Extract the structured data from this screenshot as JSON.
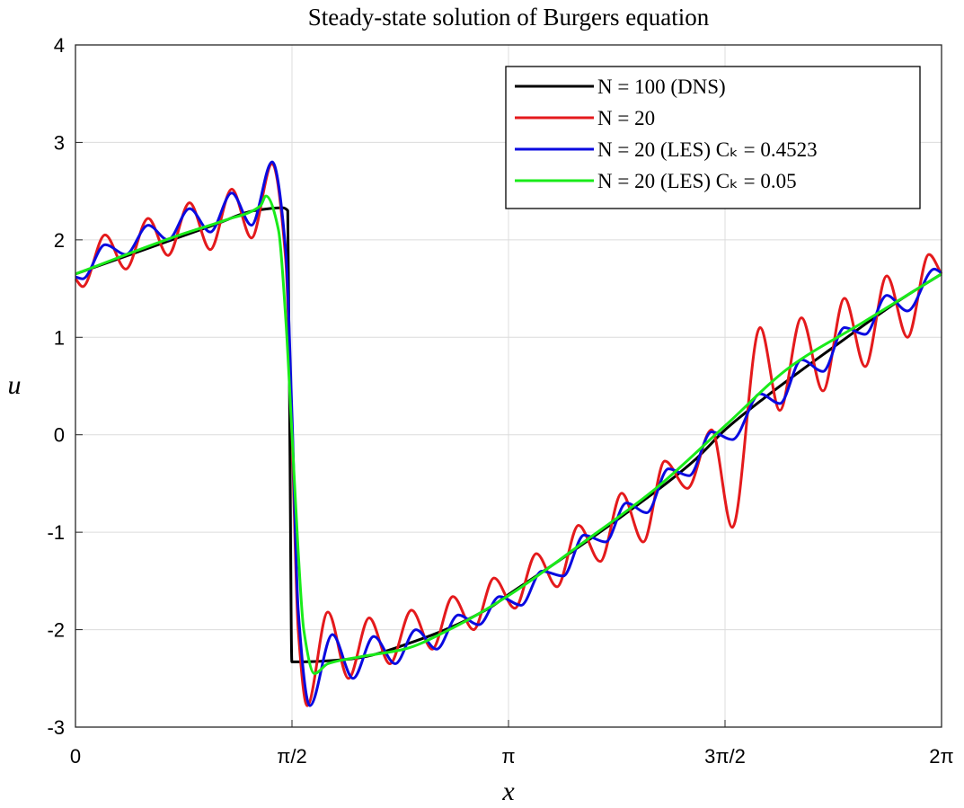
{
  "chart_data": {
    "type": "line",
    "title": "Steady-state solution of Burgers equation",
    "x_label": "x",
    "y_label": "u",
    "xlim": [
      0,
      6.2832
    ],
    "ylim": [
      -3,
      4
    ],
    "xticks": [
      0,
      {
        "value": 1.5708,
        "label": "π/2"
      },
      {
        "value": 3.1416,
        "label": "π"
      },
      {
        "value": 4.7124,
        "label": "3π/2"
      },
      {
        "value": 6.2832,
        "label": "2π"
      }
    ],
    "yticks": [
      -3,
      -2,
      -1,
      0,
      1,
      2,
      3,
      4
    ],
    "grid": true,
    "legend": "upper right",
    "series": [
      {
        "name": "N = 100 (DNS)",
        "color": "#000000",
        "x": [
          0,
          0.5,
          1.0,
          1.3,
          1.5,
          1.54,
          1.555,
          1.57,
          1.65,
          2.0,
          2.5,
          3.0,
          3.1416,
          3.5,
          4.0,
          4.5,
          4.7124,
          5.0,
          5.5,
          6.0,
          6.2832
        ],
        "values": [
          1.65,
          1.9,
          2.15,
          2.3,
          2.33,
          2.3,
          0.0,
          -2.33,
          -2.33,
          -2.3,
          -2.1,
          -1.78,
          -1.64,
          -1.3,
          -0.8,
          -0.25,
          0.05,
          0.38,
          0.9,
          1.4,
          1.65
        ]
      },
      {
        "name": "N = 20",
        "color": "#e41a1c",
        "x": [
          0,
          0.052,
          0.215,
          0.365,
          0.528,
          0.671,
          0.828,
          0.978,
          1.134,
          1.277,
          1.427,
          1.525,
          1.571,
          1.616,
          1.681,
          1.831,
          1.981,
          2.131,
          2.281,
          2.438,
          2.588,
          2.738,
          2.888,
          3.037,
          3.187,
          3.344,
          3.494,
          3.65,
          3.807,
          3.963,
          4.119,
          4.276,
          4.439,
          4.615,
          4.765,
          4.967,
          5.11,
          5.267,
          5.423,
          5.579,
          5.729,
          5.886,
          6.036,
          6.192,
          6.2832
        ],
        "values": [
          1.6,
          1.52,
          2.05,
          1.7,
          2.22,
          1.84,
          2.38,
          1.9,
          2.52,
          2.02,
          2.78,
          1.8,
          0.0,
          -2.0,
          -2.78,
          -1.82,
          -2.5,
          -1.88,
          -2.35,
          -1.8,
          -2.2,
          -1.66,
          -2.0,
          -1.47,
          -1.78,
          -1.22,
          -1.56,
          -0.93,
          -1.3,
          -0.6,
          -1.1,
          -0.27,
          -0.55,
          0.05,
          -0.95,
          1.1,
          0.25,
          1.2,
          0.45,
          1.4,
          0.7,
          1.63,
          1.0,
          1.85,
          1.65
        ]
      },
      {
        "name": "N = 20 (LES) Cₖ = 0.4523",
        "color": "#0a0ae0",
        "x": [
          0,
          0.052,
          0.215,
          0.365,
          0.528,
          0.671,
          0.828,
          0.978,
          1.134,
          1.277,
          1.427,
          1.525,
          1.571,
          1.616,
          1.701,
          1.864,
          2.014,
          2.164,
          2.32,
          2.47,
          2.62,
          2.777,
          2.927,
          3.076,
          3.233,
          3.383,
          3.539,
          3.689,
          3.846,
          3.996,
          4.145,
          4.302,
          4.452,
          4.615,
          4.765,
          4.967,
          5.11,
          5.267,
          5.423,
          5.579,
          5.729,
          5.886,
          6.036,
          6.231,
          6.2832
        ],
        "values": [
          1.62,
          1.6,
          1.95,
          1.85,
          2.15,
          2.0,
          2.32,
          2.08,
          2.48,
          2.15,
          2.8,
          1.9,
          0.2,
          -1.8,
          -2.78,
          -2.05,
          -2.5,
          -2.07,
          -2.35,
          -2.0,
          -2.2,
          -1.85,
          -1.95,
          -1.66,
          -1.75,
          -1.4,
          -1.45,
          -1.03,
          -1.1,
          -0.7,
          -0.8,
          -0.35,
          -0.42,
          0.03,
          -0.05,
          0.42,
          0.32,
          0.77,
          0.65,
          1.1,
          1.03,
          1.43,
          1.27,
          1.7,
          1.66
        ]
      },
      {
        "name": "N = 20 (LES) Cₖ = 0.05",
        "color": "#1aeb1a",
        "x": [
          0,
          0.756,
          1.082,
          1.343,
          1.382,
          1.473,
          1.525,
          1.571,
          1.616,
          1.656,
          1.734,
          1.831,
          2.06,
          2.386,
          2.712,
          3.142,
          3.689,
          4.211,
          4.719,
          5.188,
          5.71,
          6.2832
        ],
        "values": [
          1.65,
          2.05,
          2.2,
          2.35,
          2.45,
          2.1,
          1.2,
          0.0,
          -1.2,
          -2.0,
          -2.45,
          -2.35,
          -2.28,
          -2.2,
          -2.0,
          -1.65,
          -1.1,
          -0.55,
          0.1,
          0.7,
          1.15,
          1.65
        ]
      }
    ]
  }
}
